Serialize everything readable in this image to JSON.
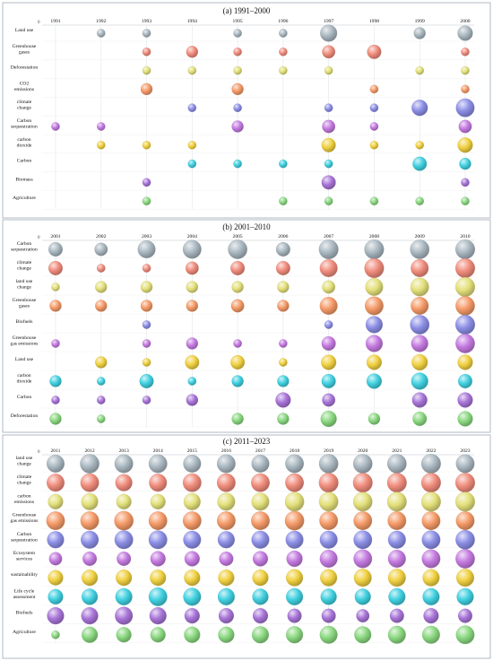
{
  "chart_data": [
    {
      "type": "scatter",
      "subtype": "bubble",
      "title": "(a) 1991–2000",
      "axis_zero_label": "0",
      "columns": [
        "1991",
        "1992",
        "1993",
        "1994",
        "1995",
        "1996",
        "1997",
        "1998",
        "1999",
        "2000"
      ],
      "rows": [
        {
          "label": [
            "Land use"
          ],
          "color": "#a9b7c0",
          "values": [
            0,
            1,
            1,
            0,
            1,
            1,
            8,
            0,
            3,
            6
          ]
        },
        {
          "label": [
            "Greenhouse",
            "gases"
          ],
          "color": "#f08c7c",
          "values": [
            0,
            0,
            1,
            3,
            1,
            1,
            4,
            5,
            0,
            1
          ]
        },
        {
          "label": [
            "Deforestation"
          ],
          "color": "#e3e07a",
          "values": [
            0,
            0,
            1,
            1,
            1,
            1,
            1,
            0,
            1,
            1
          ]
        },
        {
          "label": [
            "CO2",
            "emissions"
          ],
          "color": "#f59a68",
          "values": [
            0,
            0,
            3,
            0,
            3,
            0,
            0,
            1,
            0,
            1
          ]
        },
        {
          "label": [
            "climate",
            "change"
          ],
          "color": "#8c8ee6",
          "values": [
            0,
            0,
            0,
            1,
            1,
            0,
            1,
            1,
            7,
            10
          ]
        },
        {
          "label": [
            "Carbon",
            "sequestration"
          ],
          "color": "#c47ae0",
          "values": [
            1,
            1,
            0,
            0,
            3,
            0,
            4,
            1,
            0,
            4
          ]
        },
        {
          "label": [
            "carbon",
            "dioxide"
          ],
          "color": "#f0d040",
          "values": [
            0,
            1,
            1,
            1,
            0,
            0,
            5,
            1,
            1,
            6
          ]
        },
        {
          "label": [
            "Carbon"
          ],
          "color": "#40d0e0",
          "values": [
            0,
            0,
            0,
            1,
            1,
            1,
            1,
            0,
            5,
            3
          ]
        },
        {
          "label": [
            "Biomass"
          ],
          "color": "#a874d8",
          "values": [
            0,
            0,
            1,
            0,
            0,
            0,
            5,
            0,
            0,
            1
          ]
        },
        {
          "label": [
            "Agriculture"
          ],
          "color": "#8ad880",
          "values": [
            0,
            0,
            1,
            0,
            0,
            1,
            1,
            1,
            1,
            1
          ]
        }
      ]
    },
    {
      "type": "scatter",
      "subtype": "bubble",
      "title": "(b) 2001–2010",
      "axis_zero_label": "0",
      "columns": [
        "2001",
        "2002",
        "2003",
        "2004",
        "2005",
        "2006",
        "2007",
        "2008",
        "2009",
        "2010"
      ],
      "rows": [
        {
          "label": [
            "Carbon",
            "sequestration"
          ],
          "color": "#a9b7c0",
          "values": [
            5,
            4,
            9,
            10,
            11,
            5,
            13,
            13,
            11,
            14
          ]
        },
        {
          "label": [
            "climate",
            "change"
          ],
          "color": "#f08c7c",
          "values": [
            5,
            1,
            1,
            4,
            5,
            5,
            9,
            16,
            9,
            15
          ]
        },
        {
          "label": [
            "land use",
            "change"
          ],
          "color": "#e3e07a",
          "values": [
            1,
            3,
            3,
            3,
            3,
            3,
            4,
            9,
            10,
            13
          ]
        },
        {
          "label": [
            "Greenhouse",
            "gases"
          ],
          "color": "#f59a68",
          "values": [
            3,
            3,
            3,
            3,
            4,
            3,
            9,
            10,
            9,
            11
          ]
        },
        {
          "label": [
            "Biofuels"
          ],
          "color": "#8c8ee6",
          "values": [
            0,
            0,
            1,
            0,
            0,
            0,
            1,
            8,
            11,
            15
          ]
        },
        {
          "label": [
            "Greenhouse",
            "gas emissions"
          ],
          "color": "#c47ae0",
          "values": [
            1,
            0,
            1,
            3,
            1,
            1,
            5,
            8,
            8,
            11
          ]
        },
        {
          "label": [
            "Land use"
          ],
          "color": "#f0d040",
          "values": [
            0,
            3,
            1,
            5,
            5,
            1,
            6,
            6,
            7,
            6
          ]
        },
        {
          "label": [
            "carbon",
            "dioxide"
          ],
          "color": "#40d0e0",
          "values": [
            3,
            1,
            5,
            1,
            3,
            3,
            5,
            6,
            8,
            5
          ]
        },
        {
          "label": [
            "Carbon"
          ],
          "color": "#a874d8",
          "values": [
            1,
            1,
            1,
            3,
            0,
            6,
            4,
            0,
            6,
            6
          ]
        },
        {
          "label": [
            "Deforestation"
          ],
          "color": "#8ad880",
          "values": [
            3,
            1,
            0,
            0,
            3,
            3,
            7,
            3,
            5,
            6
          ]
        }
      ]
    },
    {
      "type": "scatter",
      "subtype": "bubble",
      "title": "(c) 2011–2023",
      "axis_zero_label": "0",
      "columns": [
        "2011",
        "2012",
        "2013",
        "2014",
        "2015",
        "2016",
        "2017",
        "2018",
        "2019",
        "2020",
        "2021",
        "2022",
        "2023"
      ],
      "rows": [
        {
          "label": [
            "land use",
            "change"
          ],
          "color": "#a9b7c0",
          "values": [
            9,
            11,
            10,
            10,
            9,
            10,
            9,
            10,
            11,
            11,
            11,
            12,
            10
          ]
        },
        {
          "label": [
            "climate",
            "change"
          ],
          "color": "#f08c7c",
          "values": [
            9,
            10,
            8,
            9,
            10,
            10,
            10,
            10,
            12,
            12,
            12,
            15,
            14
          ]
        },
        {
          "label": [
            "carbon",
            "emissions"
          ],
          "color": "#e3e07a",
          "values": [
            6,
            8,
            6,
            6,
            8,
            9,
            9,
            11,
            11,
            11,
            12,
            15,
            14
          ]
        },
        {
          "label": [
            "Greenhouse",
            "gas emissions"
          ],
          "color": "#f59a68",
          "values": [
            10,
            10,
            11,
            10,
            10,
            10,
            10,
            11,
            10,
            10,
            10,
            10,
            10
          ]
        },
        {
          "label": [
            "Carbon",
            "sequestration"
          ],
          "color": "#8c8ee6",
          "values": [
            8,
            9,
            10,
            10,
            9,
            8,
            9,
            9,
            9,
            10,
            9,
            10,
            11
          ]
        },
        {
          "label": [
            "Ecosystem",
            "services"
          ],
          "color": "#c47ae0",
          "values": [
            4,
            5,
            5,
            6,
            6,
            5,
            6,
            7,
            9,
            10,
            9,
            10,
            11
          ]
        },
        {
          "label": [
            "sustainability"
          ],
          "color": "#f0d040",
          "values": [
            6,
            7,
            7,
            7,
            7,
            7,
            7,
            8,
            8,
            9,
            9,
            8,
            9
          ]
        },
        {
          "label": [
            "Life cycle",
            "assessment"
          ],
          "color": "#40d0e0",
          "values": [
            6,
            7,
            8,
            10,
            9,
            8,
            7,
            8,
            7,
            7,
            8,
            8,
            8
          ]
        },
        {
          "label": [
            "Biofuels"
          ],
          "color": "#a874d8",
          "values": [
            8,
            8,
            9,
            8,
            6,
            6,
            6,
            5,
            5,
            4,
            5,
            6,
            5
          ]
        },
        {
          "label": [
            "Agriculture"
          ],
          "color": "#8ad880",
          "values": [
            1,
            7,
            6,
            6,
            7,
            7,
            8,
            8,
            9,
            8,
            9,
            9,
            10
          ]
        }
      ]
    }
  ]
}
